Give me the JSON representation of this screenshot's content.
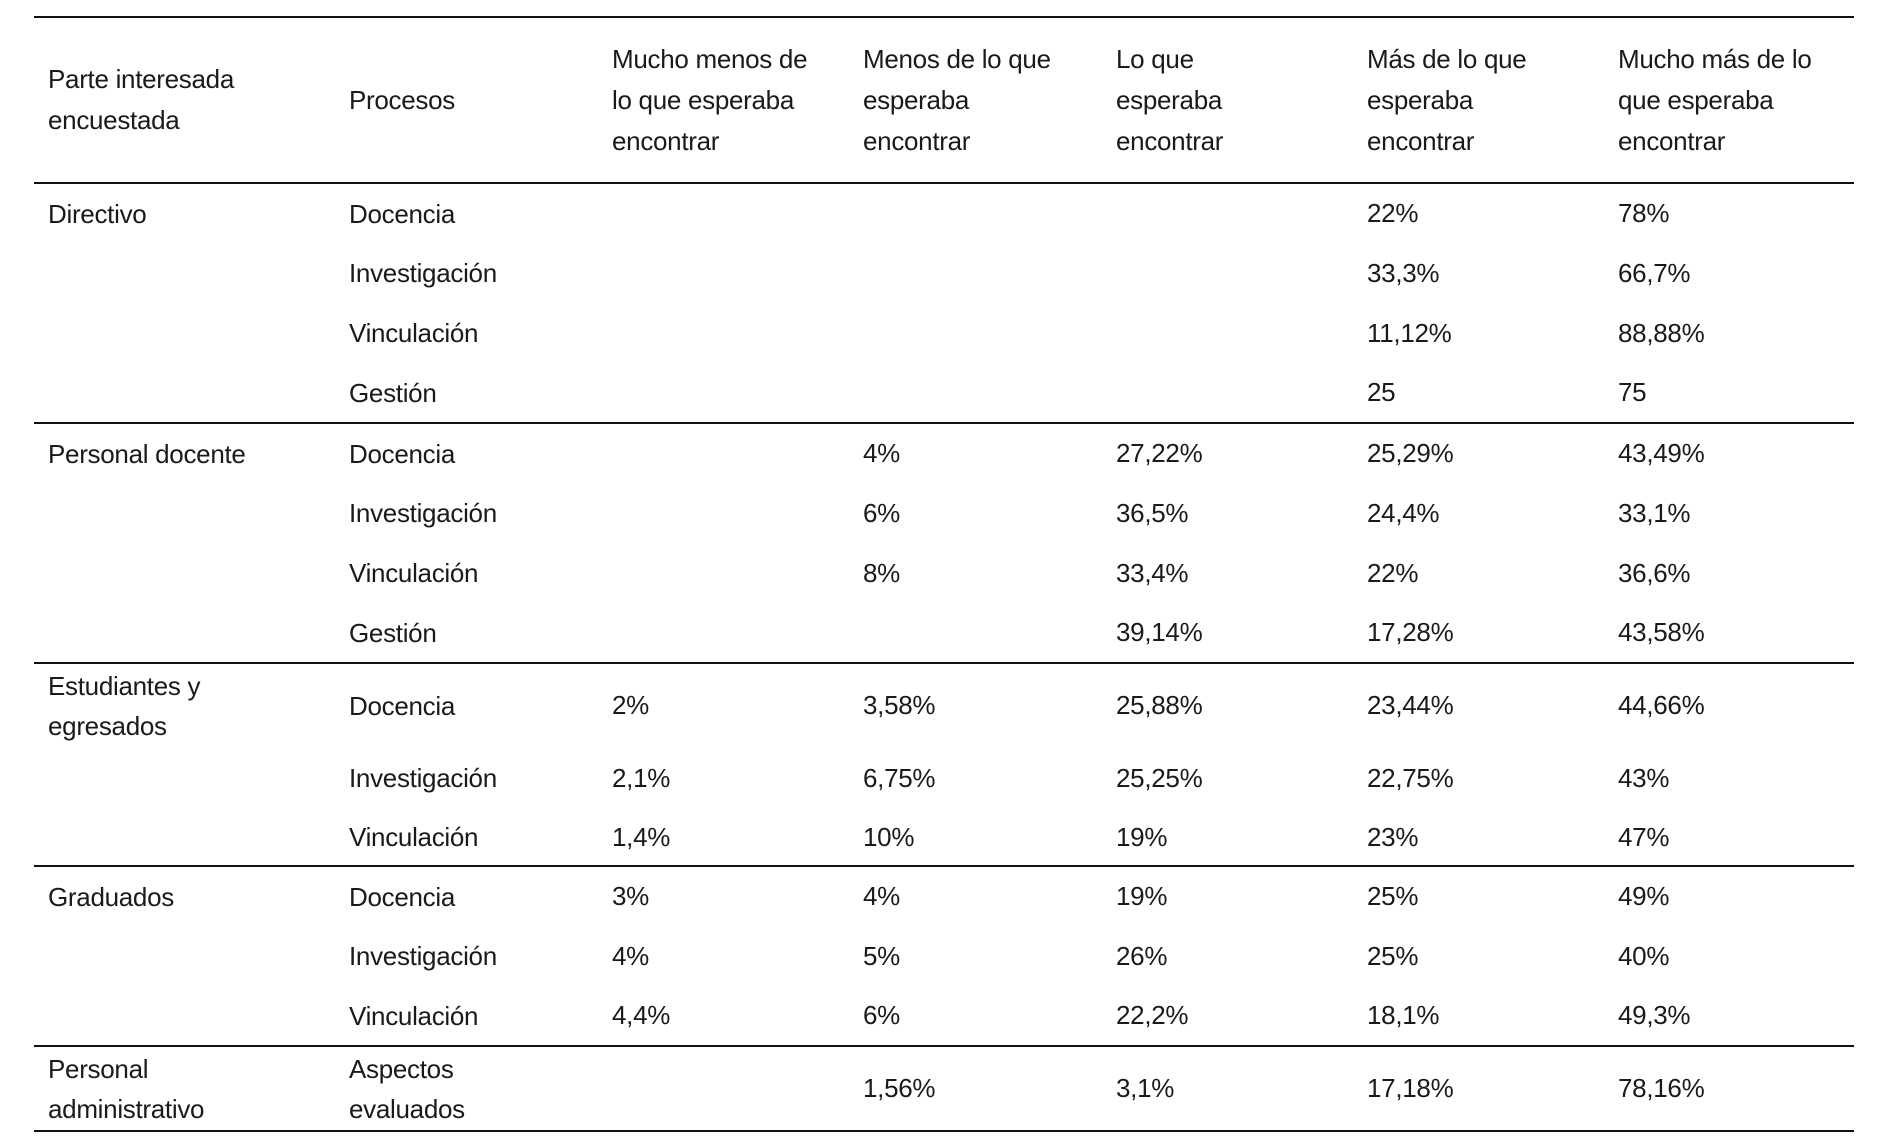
{
  "table": {
    "headers": [
      "Parte interesada encuestada",
      "Procesos",
      "Mucho menos de lo que esperaba encontrar",
      "Menos de lo que esperaba encontrar",
      "Lo que esperaba encontrar",
      "Más de lo que esperaba encontrar",
      "Mucho más de lo que esperaba encontrar"
    ],
    "groups": [
      {
        "label": "Directivo",
        "rows": [
          {
            "proceso": "Docencia",
            "values": [
              "",
              "",
              "",
              "22%",
              "78%"
            ]
          },
          {
            "proceso": "Investigación",
            "values": [
              "",
              "",
              "",
              "33,3%",
              "66,7%"
            ]
          },
          {
            "proceso": "Vinculación",
            "values": [
              "",
              "",
              "",
              "11,12%",
              "88,88%"
            ]
          },
          {
            "proceso": "Gestión",
            "values": [
              "",
              "",
              "",
              "25",
              "75"
            ]
          }
        ]
      },
      {
        "label": "Personal docente",
        "rows": [
          {
            "proceso": "Docencia",
            "values": [
              "",
              "4%",
              "27,22%",
              "25,29%",
              "43,49%"
            ]
          },
          {
            "proceso": "Investigación",
            "values": [
              "",
              "6%",
              "36,5%",
              "24,4%",
              "33,1%"
            ]
          },
          {
            "proceso": "Vinculación",
            "values": [
              "",
              "8%",
              "33,4%",
              "22%",
              "36,6%"
            ]
          },
          {
            "proceso": "Gestión",
            "values": [
              "",
              "",
              "39,14%",
              "17,28%",
              "43,58%"
            ]
          }
        ]
      },
      {
        "label": "Estudiantes y egresados",
        "rows": [
          {
            "proceso": "Docencia",
            "values": [
              "2%",
              "3,58%",
              "25,88%",
              "23,44%",
              "44,66%"
            ]
          },
          {
            "proceso": "Investigación",
            "values": [
              "2,1%",
              "6,75%",
              "25,25%",
              "22,75%",
              "43%"
            ]
          },
          {
            "proceso": "Vinculación",
            "values": [
              "1,4%",
              "10%",
              "19%",
              "23%",
              "47%"
            ]
          }
        ]
      },
      {
        "label": "Graduados",
        "rows": [
          {
            "proceso": "Docencia",
            "values": [
              "3%",
              "4%",
              "19%",
              "25%",
              "49%"
            ]
          },
          {
            "proceso": "Investigación",
            "values": [
              "4%",
              "5%",
              "26%",
              "25%",
              "40%"
            ]
          },
          {
            "proceso": "Vinculación",
            "values": [
              "4,4%",
              "6%",
              "22,2%",
              "18,1%",
              "49,3%"
            ]
          }
        ]
      },
      {
        "label": "Personal administrativo",
        "rows": [
          {
            "proceso": "Aspectos evaluados",
            "values": [
              "",
              "1,56%",
              "3,1%",
              "17,18%",
              "78,16%"
            ]
          }
        ]
      }
    ]
  }
}
